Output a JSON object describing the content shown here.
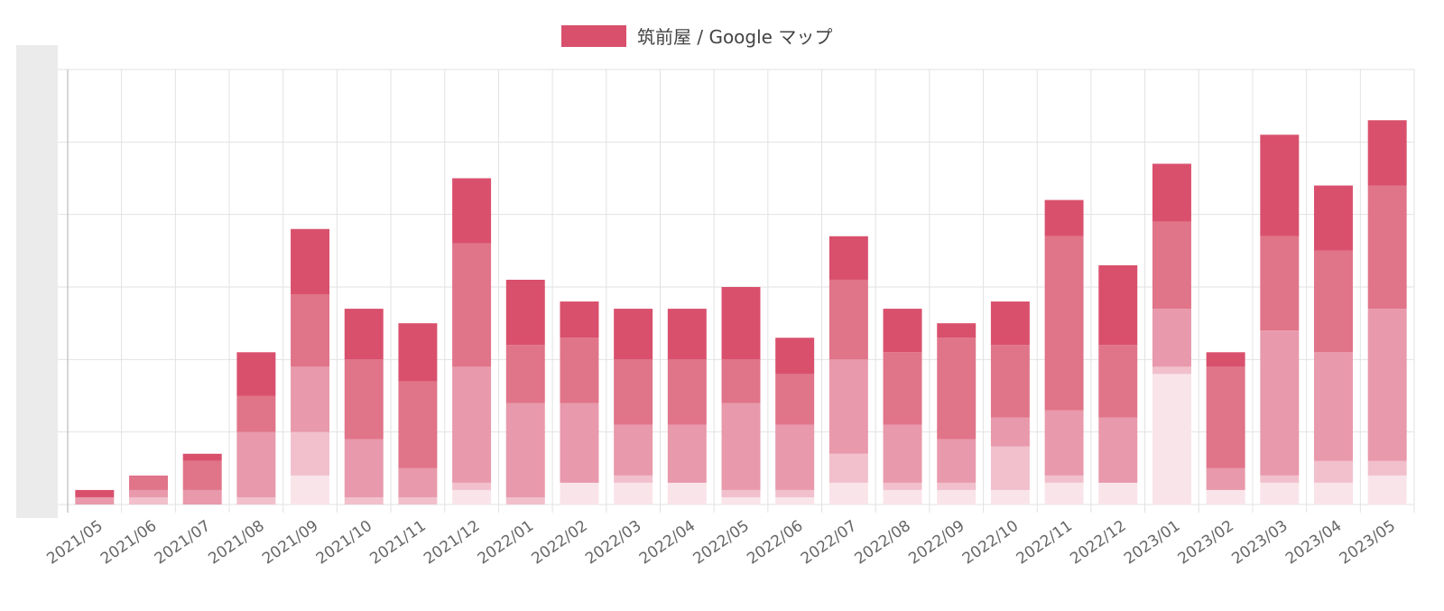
{
  "chart_data": {
    "type": "bar",
    "stacked": true,
    "legend": {
      "position": "top",
      "label": "筑前屋 / Google マップ",
      "color": "#d9506d"
    },
    "categories": [
      "2021/05",
      "2021/06",
      "2021/07",
      "2021/08",
      "2021/09",
      "2021/10",
      "2021/11",
      "2021/12",
      "2022/01",
      "2022/02",
      "2022/03",
      "2022/04",
      "2022/05",
      "2022/06",
      "2022/07",
      "2022/08",
      "2022/09",
      "2022/10",
      "2022/11",
      "2022/12",
      "2023/01",
      "2023/02",
      "2023/03",
      "2023/04",
      "2023/05"
    ],
    "ylim": [
      0,
      60
    ],
    "grid": true,
    "y_tick_labels_visible": false,
    "segment_colors": [
      "#f9e4ea",
      "#f1c0cc",
      "#e899ab",
      "#e07489",
      "#d9506d"
    ],
    "series": [
      {
        "values": [
          0,
          0,
          0,
          0,
          4,
          0,
          0,
          2,
          0,
          3,
          3,
          3,
          1,
          1,
          3,
          2,
          2,
          2,
          3,
          3,
          18,
          2,
          3,
          3,
          4
        ]
      },
      {
        "values": [
          0,
          1,
          0,
          1,
          6,
          1,
          1,
          1,
          1,
          0,
          1,
          0,
          1,
          1,
          4,
          1,
          1,
          6,
          1,
          0,
          1,
          0,
          1,
          3,
          2
        ]
      },
      {
        "values": [
          1,
          1,
          2,
          9,
          9,
          8,
          4,
          16,
          13,
          11,
          7,
          8,
          12,
          9,
          13,
          8,
          6,
          4,
          9,
          9,
          8,
          3,
          20,
          15,
          21
        ]
      },
      {
        "values": [
          0,
          2,
          4,
          5,
          10,
          11,
          12,
          17,
          8,
          9,
          9,
          9,
          6,
          7,
          11,
          10,
          14,
          10,
          24,
          10,
          12,
          14,
          13,
          14,
          17
        ]
      },
      {
        "values": [
          1,
          0,
          1,
          6,
          9,
          7,
          8,
          9,
          9,
          5,
          7,
          7,
          10,
          5,
          6,
          6,
          2,
          6,
          5,
          11,
          8,
          2,
          14,
          9,
          9
        ]
      }
    ]
  }
}
